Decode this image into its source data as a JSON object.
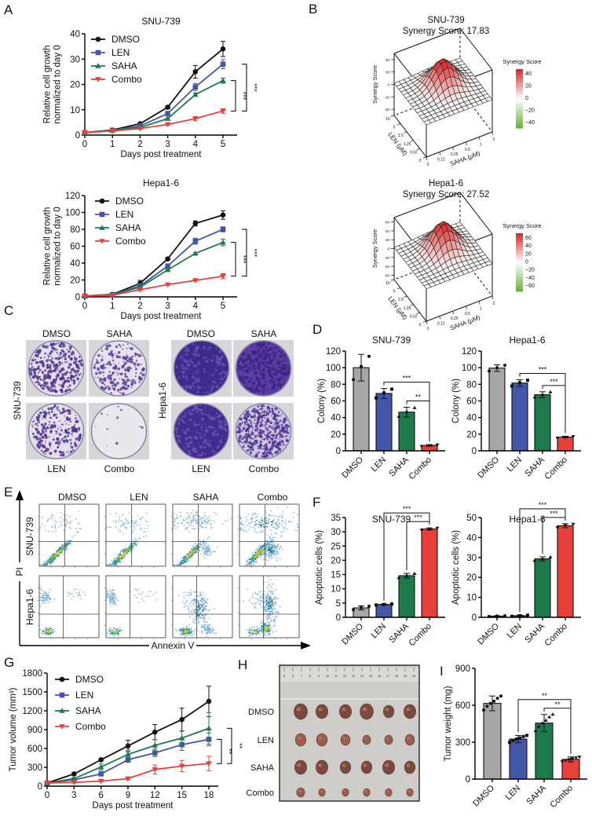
{
  "panel_labels": [
    "A",
    "B",
    "C",
    "D",
    "E",
    "F",
    "G",
    "H",
    "I"
  ],
  "colors": {
    "DMSO": "#111111",
    "DMSO_bar": "#a6a6a6",
    "LEN": "#4356a8",
    "SAHA": "#1d7a4c",
    "Combo": "#e8413c",
    "synergy_high": "#dd2a2a",
    "synergy_low": "#6cb83a"
  },
  "chart_data": [
    {
      "type": "line",
      "title": "SNU-739",
      "xlabel": "Days post treatment",
      "ylabel": [
        "Relative cell growth",
        "normalized to day 0"
      ],
      "x": [
        0,
        1,
        2,
        3,
        4,
        5
      ],
      "ylim": [
        0,
        40
      ],
      "yticks": [
        0,
        10,
        20,
        30,
        40
      ],
      "legend": "top-left",
      "series": [
        {
          "name": "DMSO",
          "values": [
            1,
            2,
            4.5,
            11,
            25,
            34
          ],
          "errors": [
            0.2,
            0.3,
            0.4,
            0.5,
            2.5,
            3
          ]
        },
        {
          "name": "LEN",
          "values": [
            1,
            1.9,
            3.6,
            8.5,
            19,
            28
          ],
          "errors": [
            0.2,
            0.2,
            0.3,
            0.8,
            1.4,
            1.8
          ]
        },
        {
          "name": "SAHA",
          "values": [
            1,
            1.8,
            3,
            6.5,
            16,
            21.5
          ],
          "errors": [
            0.2,
            0.2,
            0.3,
            0.5,
            0.6,
            1
          ]
        },
        {
          "name": "Combo",
          "values": [
            1,
            1.6,
            2.6,
            4.2,
            6.5,
            9.5
          ],
          "errors": [
            0.2,
            0.2,
            0.2,
            0.4,
            0.8,
            0.9
          ]
        }
      ],
      "significance": [
        {
          "from": "SAHA",
          "to": "Combo",
          "label": "***"
        },
        {
          "from": "LEN",
          "to": "Combo",
          "label": "***"
        }
      ]
    },
    {
      "type": "line",
      "title": "Hepa1-6",
      "xlabel": "Days post treatment",
      "ylabel": [
        "Relative cell growth",
        "normalized to day 0"
      ],
      "x": [
        0,
        1,
        2,
        3,
        4,
        5
      ],
      "ylim": [
        0,
        120
      ],
      "yticks": [
        0,
        20,
        40,
        60,
        80,
        100,
        120
      ],
      "legend": "top-left",
      "series": [
        {
          "name": "DMSO",
          "values": [
            1,
            3,
            16,
            45,
            87,
            97
          ],
          "errors": [
            0.3,
            0.5,
            3.5,
            1,
            3,
            5
          ]
        },
        {
          "name": "LEN",
          "values": [
            1,
            2.6,
            13,
            36.5,
            66,
            80
          ],
          "errors": [
            0.3,
            0.4,
            2,
            2,
            3.5,
            3
          ]
        },
        {
          "name": "SAHA",
          "values": [
            1,
            2.5,
            11.5,
            32,
            51.5,
            64.5
          ],
          "errors": [
            0.3,
            0.4,
            1,
            1,
            1,
            4
          ]
        },
        {
          "name": "Combo",
          "values": [
            1,
            2,
            8.5,
            14.5,
            19.5,
            24.5
          ],
          "errors": [
            0.3,
            0.3,
            0.8,
            0.8,
            1,
            3
          ]
        }
      ],
      "significance": [
        {
          "from": "SAHA",
          "to": "Combo",
          "label": "***"
        },
        {
          "from": "LEN",
          "to": "Combo",
          "label": "***"
        }
      ]
    },
    {
      "type": "surface",
      "title": "SNU-739",
      "subtitle": "Synergy Score: 17.83",
      "zlabel": "Synergy Score",
      "xlabel": "SAHA (µM)",
      "ylabel": "LEN (µM)",
      "x_ticks": [
        "0",
        "0.12",
        "0.25",
        "0.5",
        "1",
        "2"
      ],
      "y_ticks": [
        "0",
        "0.62",
        "1.25",
        "2.5",
        "5",
        "10"
      ],
      "z_ticks": [
        "40",
        "20",
        "0",
        "-20",
        "-40"
      ],
      "colorbar_title": "Synergy Score",
      "colorbar_ticks": [
        "40",
        "20",
        "0",
        "−20",
        "−40"
      ]
    },
    {
      "type": "surface",
      "title": "Hepa1-6",
      "subtitle": "Synergy Score: 27.52",
      "zlabel": "Synergy Score",
      "xlabel": "SAHA (µM)",
      "ylabel": "LEN (µM)",
      "x_ticks": [
        "0",
        "0.12",
        "0.25",
        "0.5",
        "1",
        "2"
      ],
      "y_ticks": [
        "0",
        "0.62",
        "1.25",
        "2.5",
        "5",
        "10"
      ],
      "z_ticks": [
        "60",
        "40",
        "20",
        "0",
        "-20",
        "-40",
        "-60"
      ],
      "colorbar_title": "Synergy Score",
      "colorbar_ticks": [
        "60",
        "40",
        "20",
        "0",
        "−20",
        "−40",
        "−60"
      ]
    },
    {
      "type": "bar",
      "title": "SNU-739",
      "ylabel": "Colony (%)",
      "categories": [
        "DMSO",
        "LEN",
        "SAHA",
        "Combo"
      ],
      "values": [
        100,
        69,
        46.5,
        6.5
      ],
      "errors": [
        16,
        6,
        6,
        1
      ],
      "ylim": [
        0,
        120
      ],
      "yticks": [
        0,
        20,
        40,
        60,
        80,
        100,
        120
      ],
      "significance": [
        {
          "from": "SAHA",
          "to": "Combo",
          "label": "**"
        },
        {
          "from": "LEN",
          "to": "Combo",
          "label": "***"
        }
      ]
    },
    {
      "type": "bar",
      "title": "Hepa1-6",
      "ylabel": "Colony (%)",
      "categories": [
        "DMSO",
        "LEN",
        "SAHA",
        "Combo"
      ],
      "values": [
        99.5,
        81.5,
        67.5,
        16.5
      ],
      "errors": [
        4,
        4,
        3.5,
        1
      ],
      "ylim": [
        0,
        120
      ],
      "yticks": [
        0,
        20,
        40,
        60,
        80,
        100,
        120
      ],
      "significance": [
        {
          "from": "SAHA",
          "to": "Combo",
          "label": "***"
        },
        {
          "from": "LEN",
          "to": "Combo",
          "label": "***"
        }
      ]
    },
    {
      "type": "bar",
      "title": "SNU-739",
      "ylabel": "Apoptotic cells (%)",
      "categories": [
        "DMSO",
        "LEN",
        "SAHA",
        "Combo"
      ],
      "values": [
        3.3,
        4.5,
        14.6,
        31
      ],
      "errors": [
        0.7,
        0.2,
        0.8,
        0.4
      ],
      "ylim": [
        0,
        35
      ],
      "yticks": [
        0,
        5,
        10,
        15,
        20,
        25,
        30,
        35
      ],
      "significance": [
        {
          "from": "SAHA",
          "to": "Combo",
          "label": "***"
        },
        {
          "from": "LEN",
          "to": "Combo",
          "label": "***"
        }
      ]
    },
    {
      "type": "bar",
      "title": "Hepa1-6",
      "ylabel": "Apoptotic cells (%)",
      "categories": [
        "DMSO",
        "LEN",
        "SAHA",
        "Combo"
      ],
      "values": [
        0.6,
        0.8,
        29.3,
        45.9
      ],
      "errors": [
        0.2,
        0.3,
        1,
        1
      ],
      "ylim": [
        0,
        50
      ],
      "yticks": [
        0,
        10,
        20,
        30,
        40,
        50
      ],
      "significance": [
        {
          "from": "SAHA",
          "to": "Combo",
          "label": "***"
        },
        {
          "from": "LEN",
          "to": "Combo",
          "label": "***"
        }
      ]
    },
    {
      "type": "line",
      "xlabel": "Days post treatment",
      "ylabel": [
        "Tumor volume (mm³)"
      ],
      "x": [
        0,
        3,
        6,
        9,
        12,
        15,
        18
      ],
      "ylim": [
        0,
        1800
      ],
      "yticks": [
        0,
        300,
        600,
        900,
        1200,
        1500,
        1800
      ],
      "legend": "top-left",
      "series": [
        {
          "name": "DMSO",
          "values": [
            50,
            195,
            420,
            640,
            860,
            1060,
            1350
          ],
          "errors": [
            5,
            15,
            20,
            90,
            120,
            180,
            240
          ]
        },
        {
          "name": "LEN",
          "values": [
            50,
            100,
            195,
            420,
            530,
            660,
            745
          ],
          "errors": [
            5,
            10,
            20,
            40,
            60,
            90,
            100
          ]
        },
        {
          "name": "SAHA",
          "values": [
            50,
            120,
            305,
            505,
            650,
            765,
            920
          ],
          "errors": [
            5,
            15,
            50,
            70,
            90,
            110,
            250
          ]
        },
        {
          "name": "Combo",
          "values": [
            50,
            60,
            80,
            120,
            265,
            320,
            360
          ],
          "errors": [
            5,
            10,
            10,
            15,
            70,
            90,
            115
          ]
        }
      ],
      "significance": [
        {
          "from": "LEN",
          "to": "Combo",
          "label": "**"
        },
        {
          "from": "SAHA",
          "to": "Combo",
          "label": "**"
        }
      ]
    },
    {
      "type": "bar",
      "ylabel": "Tumor weight (mg)",
      "categories": [
        "DMSO",
        "LEN",
        "SAHA",
        "Combo"
      ],
      "values": [
        615,
        325,
        455,
        160
      ],
      "errors": [
        60,
        30,
        70,
        20
      ],
      "ylim": [
        0,
        900
      ],
      "yticks": [
        0,
        300,
        600,
        900
      ],
      "significance": [
        {
          "from": "SAHA",
          "to": "Combo",
          "label": "**"
        },
        {
          "from": "LEN",
          "to": "Combo",
          "label": "**"
        }
      ]
    }
  ],
  "panel_C": {
    "top_left": [
      "DMSO",
      "SAHA"
    ],
    "bottom_left": [
      "LEN",
      "Combo"
    ],
    "top_right": [
      "DMSO",
      "SAHA"
    ],
    "bottom_right": [
      "LEN",
      "Combo"
    ],
    "row_labels": [
      "SNU-739",
      "Hepa1-6"
    ]
  },
  "panel_E": {
    "columns": [
      "DMSO",
      "LEN",
      "SAHA",
      "Combo"
    ],
    "rows": [
      "SNU-739",
      "Hepa1-6"
    ],
    "y_axis": "PI",
    "x_axis": "Annexin V"
  },
  "panel_H": {
    "rows": [
      "DMSO",
      "LEN",
      "SAHA",
      "Combo"
    ],
    "ruler_ticks": [
      "5",
      "6",
      "7",
      "8",
      "9",
      "10",
      "11",
      "12",
      "13",
      "14",
      "15",
      "16",
      "17",
      "18",
      "19",
      "20"
    ]
  }
}
